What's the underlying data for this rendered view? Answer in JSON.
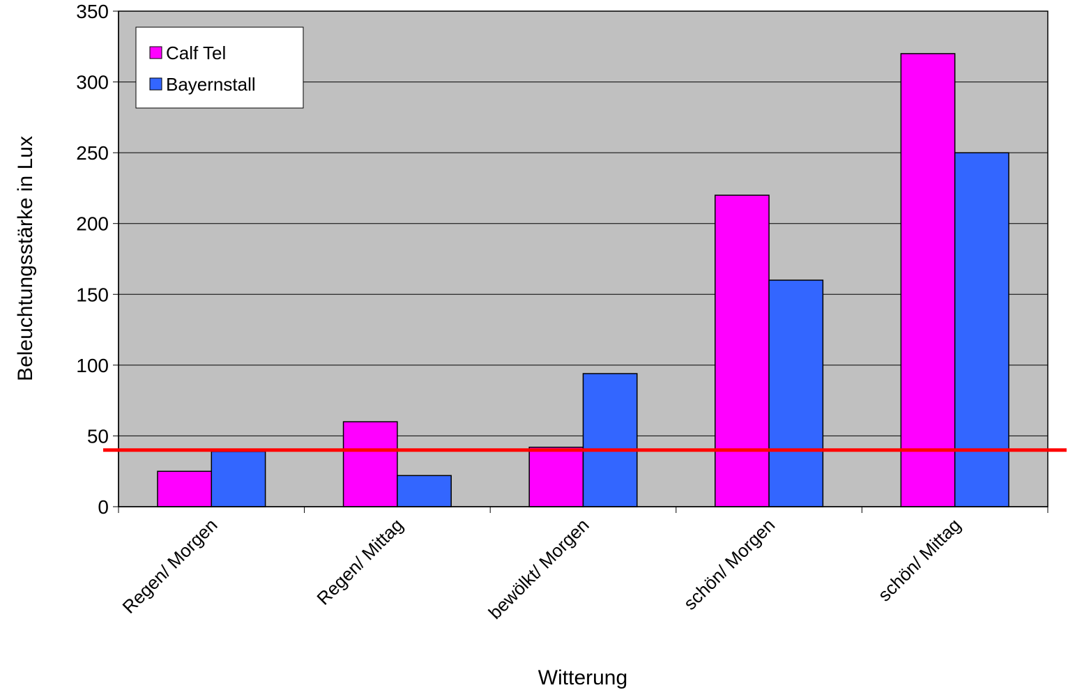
{
  "chart_data": {
    "type": "bar",
    "title": "",
    "xlabel": "Witterung",
    "ylabel": "Beleuchtungsstärke in Lux",
    "categories": [
      "Regen/ Morgen",
      "Regen/ Mittag",
      "bewölkt/ Morgen",
      "schön/ Morgen",
      "schön/ Mittag"
    ],
    "series": [
      {
        "name": "Calf Tel",
        "color": "#ff00ff",
        "values": [
          25,
          60,
          42,
          220,
          320
        ]
      },
      {
        "name": "Bayernstall",
        "color": "#3366ff",
        "values": [
          39,
          22,
          94,
          160,
          250
        ]
      }
    ],
    "ylim": [
      0,
      350
    ],
    "yticks": [
      0,
      50,
      100,
      150,
      200,
      250,
      300,
      350
    ],
    "reference_line": {
      "value": 40,
      "color": "#ff0000"
    },
    "plot_background": "#c0c0c0",
    "grid": "horizontal",
    "legend_position": "top-left"
  }
}
